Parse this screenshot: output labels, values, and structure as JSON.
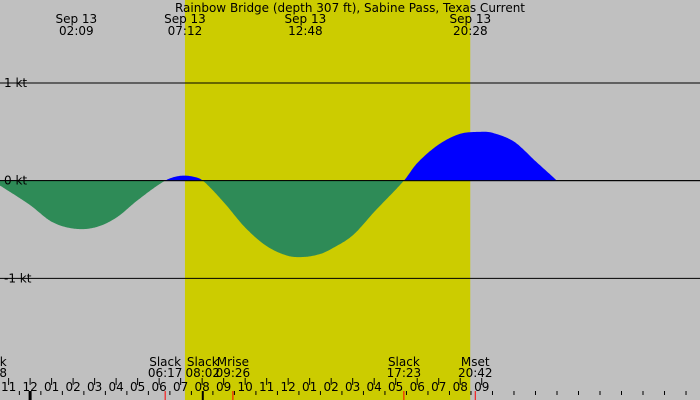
{
  "chart_data": {
    "type": "area",
    "title": "Rainbow Bridge (depth 307 ft), Sabine Pass, Texas Current",
    "y_unit": "kt",
    "ylim": [
      -2,
      1.85
    ],
    "y_ticks": [
      {
        "value": 1,
        "label": "1 kt"
      },
      {
        "value": 0,
        "label": "0 kt"
      },
      {
        "value": -1,
        "label": "-1 kt"
      }
    ],
    "x_range_hours": [
      -1.4,
      31.15
    ],
    "x_ticks": [
      "11",
      "12",
      "01",
      "02",
      "03",
      "04",
      "05",
      "06",
      "07",
      "08",
      "09",
      "10",
      "11",
      "12",
      "01",
      "02",
      "03",
      "04",
      "05",
      "06",
      "07",
      "08",
      "09"
    ],
    "x_tick_start_hour": -1,
    "midnight_marker_hour": 0,
    "daylight": {
      "start": "07:12",
      "end": "20:28"
    },
    "top_events": [
      {
        "date": "Sep 13",
        "time": "02:09",
        "hour": 2.15
      },
      {
        "date": "Sep 13",
        "time": "07:12",
        "hour": 7.2
      },
      {
        "date": "Sep 13",
        "time": "12:48",
        "hour": 12.8
      },
      {
        "date": "Sep 13",
        "time": "20:28",
        "hour": 20.47
      }
    ],
    "bottom_events": [
      {
        "label": "k",
        "time": "8",
        "hour": -1.25
      },
      {
        "label": "Slack",
        "time": "06:17",
        "hour": 6.28
      },
      {
        "label": "Slack",
        "time": "08:02",
        "hour": 8.03
      },
      {
        "label": "Mrise",
        "time": "09:26",
        "hour": 9.43
      },
      {
        "label": "Slack",
        "time": "17:23",
        "hour": 17.38
      },
      {
        "label": "Mset",
        "time": "20:42",
        "hour": 20.7
      }
    ],
    "red_marks_hours": [
      6.28,
      9.43,
      17.38,
      20.7
    ],
    "black_marks_hours": [
      0,
      8.03
    ],
    "series": [
      {
        "x": [
          -1.4,
          0,
          1,
          2,
          3,
          4,
          5,
          6.28,
          7,
          7.6,
          8.03,
          9,
          10,
          11,
          12,
          12.8,
          13.5,
          14,
          15,
          16,
          17.38,
          18,
          19,
          20,
          21,
          21.5,
          22.5,
          23.5,
          24.5
        ],
        "y": [
          -0.05,
          -0.25,
          -0.42,
          -0.49,
          -0.48,
          -0.38,
          -0.2,
          0,
          0.05,
          0.04,
          0,
          -0.22,
          -0.48,
          -0.67,
          -0.77,
          -0.78,
          -0.75,
          -0.7,
          -0.56,
          -0.32,
          0,
          0.18,
          0.37,
          0.48,
          0.5,
          0.49,
          0.4,
          0.2,
          0
        ]
      }
    ],
    "colors": {
      "background": "#c0c0c0",
      "daylight": "#cccc00",
      "flood": "#0000ff",
      "ebb": "#2e8b57",
      "axis": "#000000",
      "moon_marker": "#ff0000"
    }
  }
}
